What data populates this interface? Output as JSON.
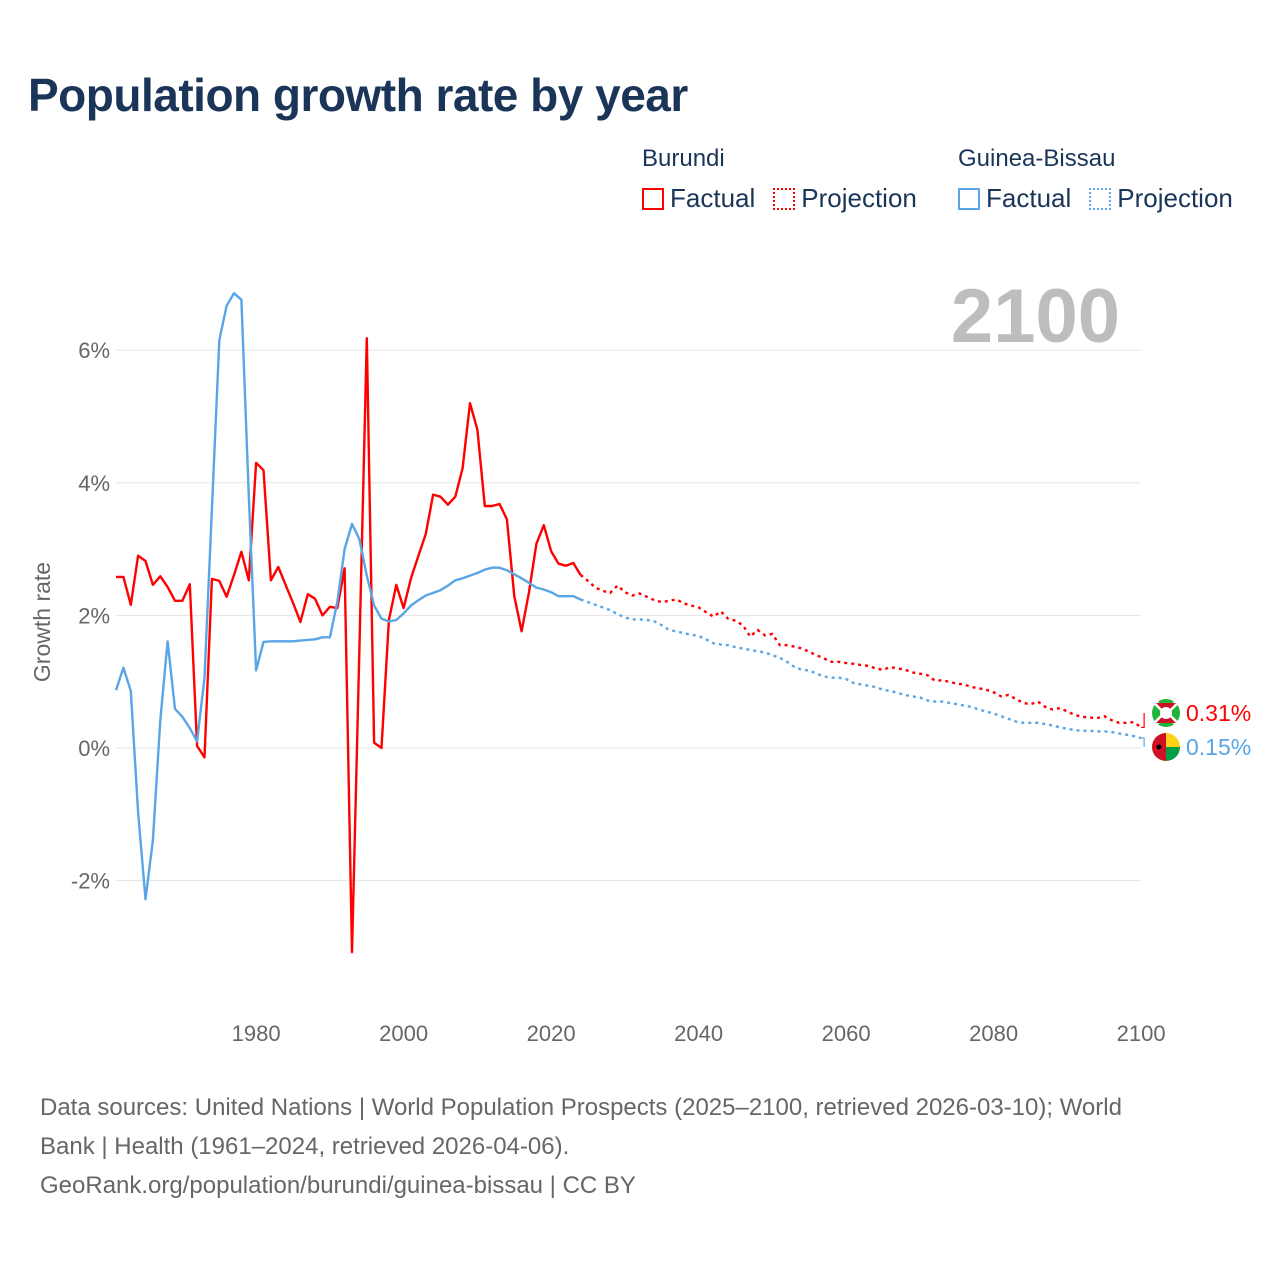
{
  "title": "Population growth rate by year",
  "legend": {
    "groups": [
      {
        "country": "Burundi",
        "factual_label": "Factual",
        "projection_label": "Projection",
        "color": "#ff0000"
      },
      {
        "country": "Guinea-Bissau",
        "factual_label": "Factual",
        "projection_label": "Projection",
        "color": "#5aa5e6"
      }
    ]
  },
  "chart_data": {
    "type": "line",
    "title": "Population growth rate by year",
    "ylabel": "Growth rate",
    "xlabel": "",
    "current_year_label": "2100",
    "xlim": [
      1961,
      2100
    ],
    "ylim": [
      -3.8,
      7.2
    ],
    "x_ticks": [
      1980,
      2000,
      2020,
      2040,
      2060,
      2080,
      2100
    ],
    "x_tick_labels": [
      "1980",
      "2000",
      "2020",
      "2040",
      "2060",
      "2080",
      "2100"
    ],
    "y_ticks": [
      -2,
      0,
      2,
      4,
      6
    ],
    "y_tick_labels": [
      "-2%",
      "0%",
      "2%",
      "4%",
      "6%"
    ],
    "grid": true,
    "factual_years": [
      1961,
      2024
    ],
    "projection_years": [
      2025,
      2100
    ],
    "series": [
      {
        "name": "Burundi",
        "color": "#ff0000",
        "end_label": "0.31%",
        "factual": [
          2.58,
          2.58,
          2.16,
          2.9,
          2.82,
          2.46,
          2.59,
          2.43,
          2.22,
          2.22,
          2.47,
          0.03,
          -0.14,
          2.55,
          2.52,
          2.28,
          2.61,
          2.96,
          2.53,
          4.3,
          4.19,
          2.53,
          2.73,
          2.46,
          2.19,
          1.9,
          2.32,
          2.25,
          2.0,
          2.13,
          2.11,
          2.71,
          -3.08,
          1.5,
          6.18,
          0.08,
          0.0,
          1.93,
          2.46,
          2.11,
          2.56,
          2.9,
          3.23,
          3.82,
          3.79,
          3.67,
          3.79,
          4.22,
          5.2,
          4.8,
          3.65,
          3.65,
          3.68,
          3.45,
          2.29,
          1.76,
          2.35,
          3.08,
          3.36,
          2.97,
          2.78,
          2.75,
          2.79,
          2.61
        ],
        "projection": [
          2.52,
          2.42,
          2.37,
          2.34,
          2.45,
          2.35,
          2.3,
          2.33,
          2.28,
          2.23,
          2.2,
          2.22,
          2.24,
          2.18,
          2.15,
          2.12,
          2.05,
          1.98,
          2.06,
          1.95,
          1.92,
          1.85,
          1.68,
          1.78,
          1.7,
          1.72,
          1.55,
          1.55,
          1.53,
          1.5,
          1.45,
          1.4,
          1.35,
          1.3,
          1.3,
          1.28,
          1.27,
          1.25,
          1.24,
          1.2,
          1.18,
          1.22,
          1.2,
          1.18,
          1.14,
          1.12,
          1.1,
          1.02,
          1.02,
          1.0,
          0.97,
          0.96,
          0.92,
          0.9,
          0.88,
          0.84,
          0.78,
          0.8,
          0.74,
          0.68,
          0.66,
          0.7,
          0.62,
          0.58,
          0.6,
          0.55,
          0.5,
          0.47,
          0.46,
          0.45,
          0.48,
          0.42,
          0.38,
          0.38,
          0.39,
          0.31
        ]
      },
      {
        "name": "Guinea-Bissau",
        "color": "#5aa5e6",
        "end_label": "0.15%",
        "factual": [
          0.87,
          1.21,
          0.86,
          -0.97,
          -2.28,
          -1.39,
          0.42,
          1.61,
          0.59,
          0.47,
          0.3,
          0.1,
          1.06,
          3.6,
          6.15,
          6.67,
          6.86,
          6.76,
          3.8,
          1.17,
          1.6,
          1.61,
          1.61,
          1.61,
          1.61,
          1.62,
          1.63,
          1.64,
          1.67,
          1.67,
          2.2,
          3.0,
          3.38,
          3.15,
          2.6,
          2.15,
          1.95,
          1.91,
          1.93,
          2.03,
          2.15,
          2.23,
          2.3,
          2.34,
          2.38,
          2.45,
          2.53,
          2.56,
          2.6,
          2.64,
          2.69,
          2.72,
          2.72,
          2.68,
          2.62,
          2.56,
          2.49,
          2.42,
          2.39,
          2.35,
          2.29,
          2.29,
          2.29,
          2.24
        ],
        "projection": [
          2.2,
          2.16,
          2.12,
          2.08,
          2.02,
          1.97,
          1.94,
          1.94,
          1.93,
          1.91,
          1.85,
          1.78,
          1.76,
          1.73,
          1.71,
          1.69,
          1.64,
          1.58,
          1.56,
          1.55,
          1.52,
          1.5,
          1.48,
          1.46,
          1.44,
          1.4,
          1.36,
          1.3,
          1.22,
          1.18,
          1.17,
          1.12,
          1.08,
          1.06,
          1.06,
          1.04,
          0.98,
          0.96,
          0.94,
          0.92,
          0.88,
          0.86,
          0.83,
          0.8,
          0.78,
          0.76,
          0.72,
          0.7,
          0.7,
          0.68,
          0.66,
          0.64,
          0.62,
          0.58,
          0.55,
          0.52,
          0.48,
          0.44,
          0.4,
          0.38,
          0.38,
          0.38,
          0.36,
          0.34,
          0.31,
          0.29,
          0.27,
          0.26,
          0.26,
          0.25,
          0.25,
          0.24,
          0.22,
          0.2,
          0.18,
          0.15
        ]
      }
    ]
  },
  "footer": {
    "line1": "Data sources: United Nations | World Population Prospects (2025–2100, retrieved 2026-03-10); World",
    "line2": "Bank | Health (1961–2024, retrieved 2026-04-06).",
    "line3": "GeoRank.org/population/burundi/guinea-bissau | CC BY"
  }
}
